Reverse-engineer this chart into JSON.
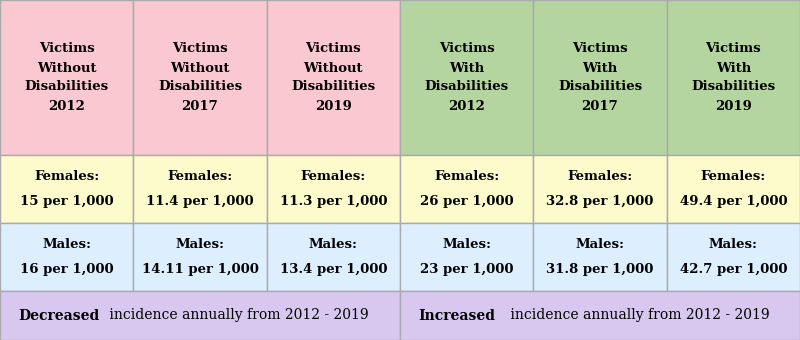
{
  "col_labels": [
    "Victims\nWithout\nDisabilities\n2012",
    "Victims\nWithout\nDisabilities\n2017",
    "Victims\nWithout\nDisabilities\n2019",
    "Victims\nWith\nDisabilities\n2012",
    "Victims\nWith\nDisabilities\n2017",
    "Victims\nWith\nDisabilities\n2019"
  ],
  "females_label": [
    "Females:",
    "Females:",
    "Females:",
    "Females:",
    "Females:",
    "Females:"
  ],
  "females_value": [
    "15 per 1,000",
    "11.4 per 1,000",
    "11.3 per 1,000",
    "26 per 1,000",
    "32.8 per 1,000",
    "49.4 per 1,000"
  ],
  "males_label": [
    "Males:",
    "Males:",
    "Males:",
    "Males:",
    "Males:",
    "Males:"
  ],
  "males_value": [
    "16 per 1,000",
    "14.11 per 1,000",
    "13.4 per 1,000",
    "23 per 1,000",
    "31.8 per 1,000",
    "42.7 per 1,000"
  ],
  "header_color_left": "#f9c8d0",
  "header_color_right": "#b5d5a0",
  "female_row_color": "#fdfacc",
  "male_row_color": "#ddeeff",
  "footer_color": "#d8c8f0",
  "border_color": "#aaaaaa",
  "footer_bold_left": "Decreased",
  "footer_rest_left": " incidence annually from 2012 - 2019",
  "footer_bold_right": "Increased",
  "footer_rest_right": " incidence annually from 2012 - 2019"
}
